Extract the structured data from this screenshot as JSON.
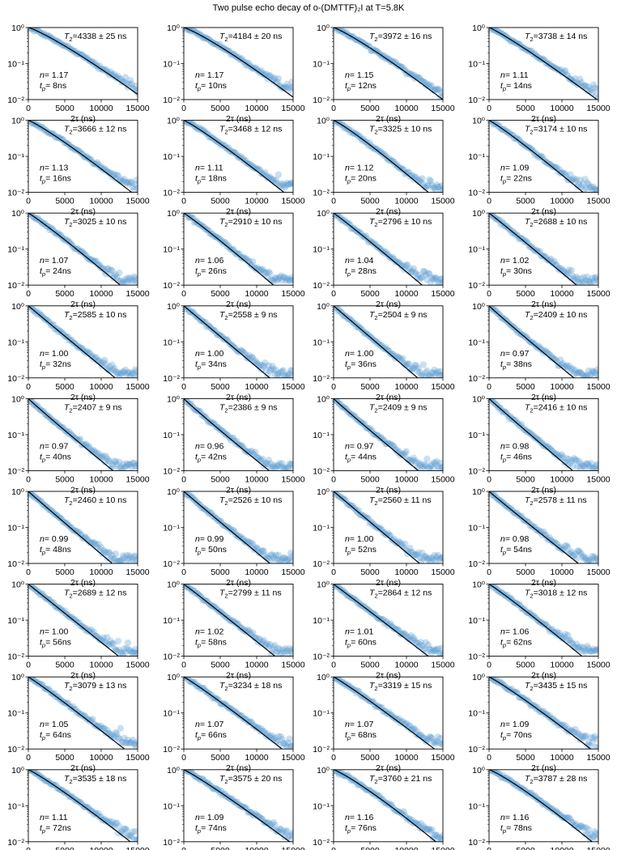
{
  "title": "Two pulse echo decay of o-(DMTTF)₂I at T=5.8K",
  "colors": {
    "points": "#5b9bd0",
    "fit": "#000000",
    "axis": "#000000"
  },
  "chart_data": {
    "type": "scatter",
    "grid_layout": {
      "rows": 9,
      "cols": 4
    },
    "xlabel": "2τ (ns)",
    "xlim": [
      0,
      15000
    ],
    "xticks": [
      0,
      5000,
      10000,
      15000
    ],
    "ylim": [
      0.01,
      1
    ],
    "yscale": "log",
    "yticks": [
      0.01,
      0.1,
      1
    ],
    "ytick_labels": [
      "10⁻²",
      "10⁻¹",
      "10⁰"
    ],
    "grid": false,
    "fit_model": "stretched exponential y = exp(-(2τ/T₂)^n)",
    "panels": [
      {
        "t2": 4338,
        "err": 25,
        "n": "1.17",
        "tp": 8
      },
      {
        "t2": 4184,
        "err": 20,
        "n": "1.17",
        "tp": 10
      },
      {
        "t2": 3972,
        "err": 16,
        "n": "1.15",
        "tp": 12
      },
      {
        "t2": 3738,
        "err": 14,
        "n": "1.11",
        "tp": 14
      },
      {
        "t2": 3666,
        "err": 12,
        "n": "1.13",
        "tp": 16
      },
      {
        "t2": 3468,
        "err": 12,
        "n": "1.11",
        "tp": 18
      },
      {
        "t2": 3325,
        "err": 10,
        "n": "1.12",
        "tp": 20
      },
      {
        "t2": 3174,
        "err": 10,
        "n": "1.09",
        "tp": 22
      },
      {
        "t2": 3025,
        "err": 10,
        "n": "1.07",
        "tp": 24
      },
      {
        "t2": 2910,
        "err": 10,
        "n": "1.06",
        "tp": 26
      },
      {
        "t2": 2796,
        "err": 10,
        "n": "1.04",
        "tp": 28
      },
      {
        "t2": 2688,
        "err": 10,
        "n": "1.02",
        "tp": 30
      },
      {
        "t2": 2585,
        "err": 10,
        "n": "1.00",
        "tp": 32
      },
      {
        "t2": 2558,
        "err": 9,
        "n": "1.00",
        "tp": 34
      },
      {
        "t2": 2504,
        "err": 9,
        "n": "1.00",
        "tp": 36
      },
      {
        "t2": 2409,
        "err": 10,
        "n": "0.97",
        "tp": 38
      },
      {
        "t2": 2407,
        "err": 9,
        "n": "0.97",
        "tp": 40
      },
      {
        "t2": 2386,
        "err": 9,
        "n": "0.96",
        "tp": 42
      },
      {
        "t2": 2409,
        "err": 9,
        "n": "0.97",
        "tp": 44
      },
      {
        "t2": 2416,
        "err": 10,
        "n": "0.98",
        "tp": 46
      },
      {
        "t2": 2460,
        "err": 10,
        "n": "0.99",
        "tp": 48
      },
      {
        "t2": 2526,
        "err": 10,
        "n": "0.99",
        "tp": 50
      },
      {
        "t2": 2560,
        "err": 11,
        "n": "1.00",
        "tp": 52
      },
      {
        "t2": 2578,
        "err": 11,
        "n": "0.98",
        "tp": 54
      },
      {
        "t2": 2689,
        "err": 12,
        "n": "1.00",
        "tp": 56
      },
      {
        "t2": 2799,
        "err": 11,
        "n": "1.02",
        "tp": 58
      },
      {
        "t2": 2864,
        "err": 12,
        "n": "1.01",
        "tp": 60
      },
      {
        "t2": 3018,
        "err": 12,
        "n": "1.06",
        "tp": 62
      },
      {
        "t2": 3079,
        "err": 13,
        "n": "1.05",
        "tp": 64
      },
      {
        "t2": 3234,
        "err": 18,
        "n": "1.07",
        "tp": 66
      },
      {
        "t2": 3319,
        "err": 15,
        "n": "1.07",
        "tp": 68
      },
      {
        "t2": 3435,
        "err": 15,
        "n": "1.09",
        "tp": 70
      },
      {
        "t2": 3535,
        "err": 18,
        "n": "1.11",
        "tp": 72
      },
      {
        "t2": 3575,
        "err": 20,
        "n": "1.09",
        "tp": 74
      },
      {
        "t2": 3760,
        "err": 21,
        "n": "1.16",
        "tp": 76
      },
      {
        "t2": 3787,
        "err": 28,
        "n": "1.16",
        "tp": 78
      }
    ]
  }
}
